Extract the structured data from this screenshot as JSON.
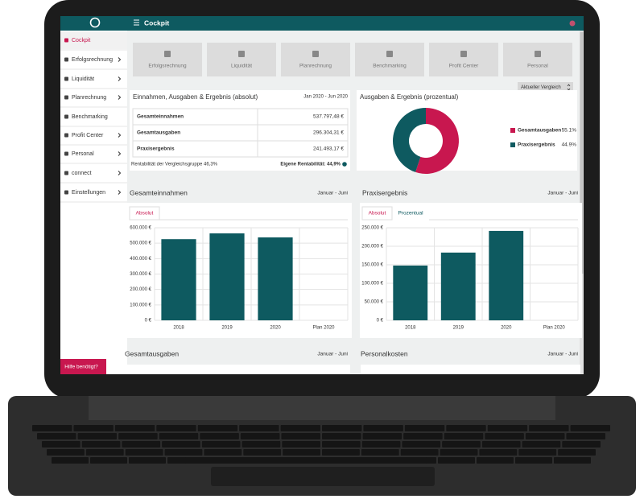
{
  "topbar": {
    "title": "Cockpit"
  },
  "sidebar": {
    "items": [
      "Cockpit",
      "Erfolgsrechnung",
      "Liquidität",
      "Planrechnung",
      "Benchmarking",
      "Profit Center",
      "Personal",
      "connect",
      "Einstellungen"
    ],
    "help": "Hilfe benötigt?"
  },
  "tiles": [
    "Erfolgsrechnung",
    "Liquidität",
    "Planrechnung",
    "Benchmarking",
    "Profit Center",
    "Personal"
  ],
  "compare_button": "Aktueller Vergleich",
  "summary": {
    "title": "Einnahmen, Ausgaben & Ergebnis (absolut)",
    "period": "Jan 2020 - Jun 2020",
    "rows": [
      [
        "Gesamteinnahmen",
        "537.797,48 €"
      ],
      [
        "Gesamtausgaben",
        "296.304,31 €"
      ],
      [
        "Praxisergebnis",
        "241.493,17 €"
      ]
    ],
    "footer_left": "Rentabilität der Vergleichsgruppe 46,3%",
    "footer_right": "Eigene Rentabilität: 44,9%"
  },
  "chart_data": [
    {
      "type": "pie",
      "title": "Ausgaben & Ergebnis (prozentual)",
      "categories": [
        "Gesamtausgaben",
        "Praxisergebnis"
      ],
      "values": [
        55.1,
        44.9
      ],
      "value_labels": [
        "55.1%",
        "44.9%"
      ],
      "colors": [
        "#c8174f",
        "#0e5a60"
      ]
    },
    {
      "type": "bar",
      "title": "Gesamteinnahmen",
      "subtitle": "Januar - Juni",
      "tabs": [
        "Absolut"
      ],
      "categories": [
        "2018",
        "2019",
        "2020",
        "Plan 2020"
      ],
      "values": [
        526000,
        564000,
        537797.48,
        null
      ],
      "color": "#0e5a60",
      "ylim": [
        0,
        600000
      ],
      "grid": true,
      "yticks": [
        {
          "value": 0,
          "label": "0 €"
        },
        {
          "value": 100000,
          "label": "100.000 €"
        },
        {
          "value": 200000,
          "label": "200.000 €"
        },
        {
          "value": 300000,
          "label": "300.000 €"
        },
        {
          "value": 400000,
          "label": "400.000 €"
        },
        {
          "value": 500000,
          "label": "500.000 €"
        },
        {
          "value": 600000,
          "label": "600.000 €"
        }
      ]
    },
    {
      "type": "bar",
      "title": "Praxisergebnis",
      "subtitle": "Januar - Juni",
      "tabs": [
        "Absolut",
        "Prozentual"
      ],
      "categories": [
        "2018",
        "2019",
        "2020",
        "Plan 2020"
      ],
      "values": [
        148000,
        183000,
        241493.17,
        null
      ],
      "color": "#0e5a60",
      "ylim": [
        0,
        250000
      ],
      "grid": true,
      "yticks": [
        {
          "value": 0,
          "label": "0 €"
        },
        {
          "value": 50000,
          "label": "50.000 €"
        },
        {
          "value": 100000,
          "label": "100.000 €"
        },
        {
          "value": 150000,
          "label": "150.000 €"
        },
        {
          "value": 200000,
          "label": "200.000 €"
        },
        {
          "value": 250000,
          "label": "250.000 €"
        }
      ]
    }
  ],
  "sections": [
    {
      "title": "Gesamtausgaben",
      "subtitle": "Januar - Juni"
    },
    {
      "title": "Personalkosten",
      "subtitle": "Januar - Juni"
    }
  ]
}
